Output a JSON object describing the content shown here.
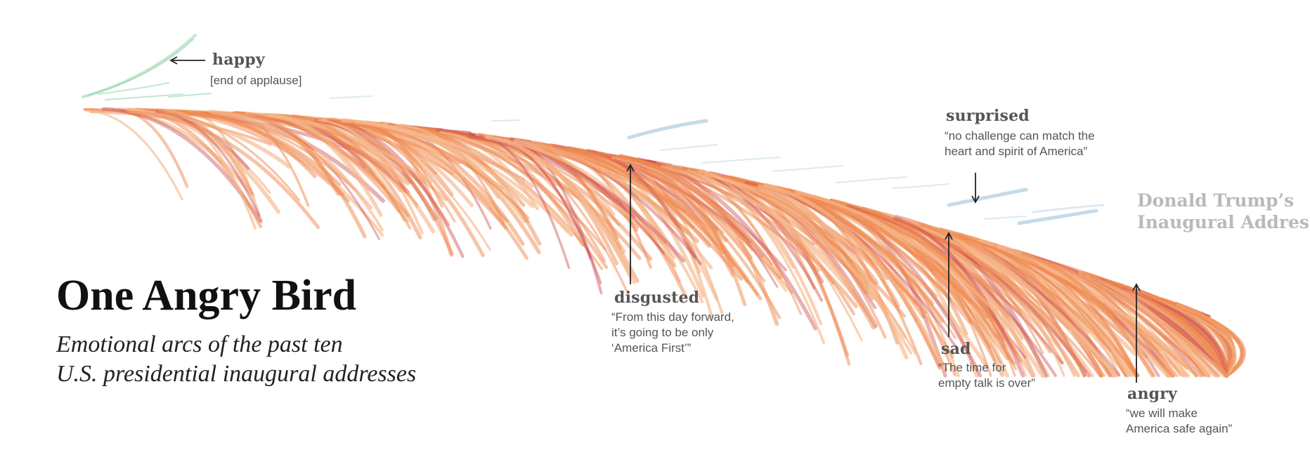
{
  "title": "One Angry Bird",
  "subtitle_lines": [
    "Emotional arcs of the past ten",
    "U.S. presidential inaugural addresses"
  ],
  "side_label_lines": [
    "Donald Trump’s",
    "Inaugural Address"
  ],
  "colors": {
    "angry": "#c9444f",
    "disgusted": "#ef8a4f",
    "fear": "#f6b98c",
    "happy": "#8fd3a6",
    "surprised": "#9ec3dc",
    "sad": "#a9c8de"
  },
  "annotations": {
    "happy": {
      "emotion": "happy",
      "quote": "[end of applause]"
    },
    "surprised": {
      "emotion": "surprised",
      "quote_lines": [
        "“no challenge can match the",
        "heart and spirit of America”"
      ]
    },
    "disgusted": {
      "emotion": "disgusted",
      "quote_lines": [
        "“From this day forward,",
        "it’s going to be only",
        "‘America First’”"
      ]
    },
    "sad": {
      "emotion": "sad",
      "quote_lines": [
        "“The time for",
        "empty talk is over”"
      ]
    },
    "angry": {
      "emotion": "angry",
      "quote_lines": [
        "“we will make",
        "America safe again”"
      ]
    }
  }
}
